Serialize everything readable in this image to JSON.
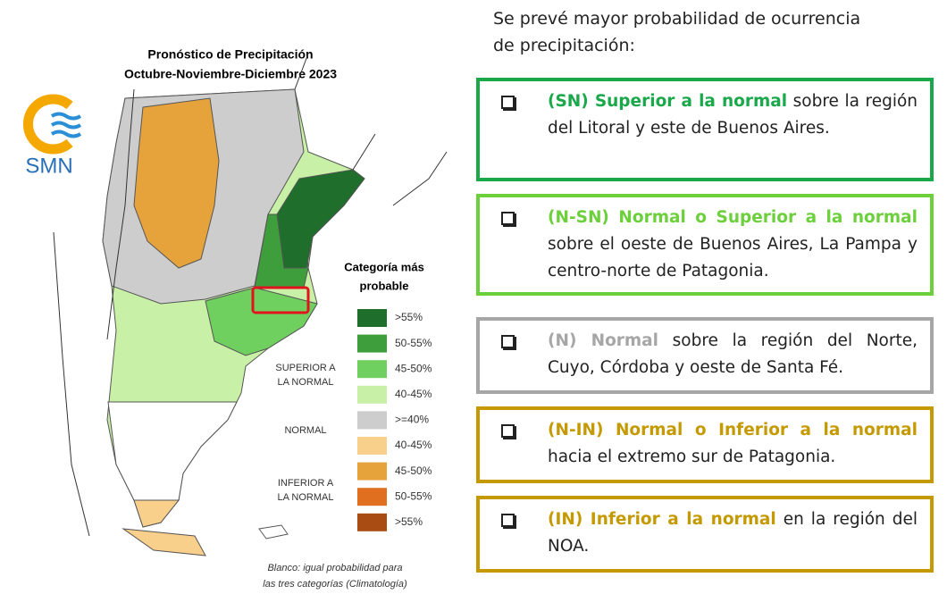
{
  "map": {
    "title": [
      "Pronóstico de Precipitación",
      "Octubre-Noviembre-Diciembre 2023"
    ],
    "logo": "SMN",
    "legend": {
      "title": [
        "Categoría más",
        "probable"
      ],
      "groups": [
        [
          "SUPERIOR A",
          "LA NORMAL"
        ],
        [
          "NORMAL"
        ],
        [
          "INFERIOR A",
          "LA NORMAL"
        ]
      ],
      "items": [
        {
          "label": ">55%",
          "color": "#1f6e2b"
        },
        {
          "label": "50-55%",
          "color": "#3f9e3c"
        },
        {
          "label": "45-50%",
          "color": "#6fd060"
        },
        {
          "label": "40-45%",
          "color": "#c8f0a6"
        },
        {
          "label": ">=40%",
          "color": "#cdcdcd"
        },
        {
          "label": "40-45%",
          "color": "#f9cf8c"
        },
        {
          "label": "45-50%",
          "color": "#e6a33b"
        },
        {
          "label": "50-55%",
          "color": "#e0701f"
        },
        {
          "label": ">55%",
          "color": "#a84c14"
        }
      ]
    },
    "note": [
      "Blanco: igual probabilidad para",
      "las tres categorías (Climatología)"
    ]
  },
  "intro": [
    "Se prevé mayor probabilidad de ocurrencia",
    "de precipitación:"
  ],
  "boxes": [
    {
      "highlight": "(SN) Superior a la normal",
      "text": "sobre la región del Litoral y este de Buenos Aires.",
      "color": "#1aa84b"
    },
    {
      "highlight": "(N-SN) Normal o Superior a la normal",
      "text": "sobre el oeste de Buenos Aires, La Pampa y centro-norte de Patagonia.",
      "color": "#6ccf3c"
    },
    {
      "highlight": "(N) Normal",
      "text": "sobre la región del Norte, Cuyo, Córdoba y oeste de Santa Fé.",
      "color": "#a6a6a6"
    },
    {
      "highlight": "(N-IN) Normal o Inferior a la normal",
      "text": "hacia el extremo sur de Patagonia.",
      "color": "#c49a00"
    },
    {
      "highlight": "(IN) Inferior a la normal",
      "text": "en la región del NOA.",
      "color": "#c49a00"
    }
  ]
}
